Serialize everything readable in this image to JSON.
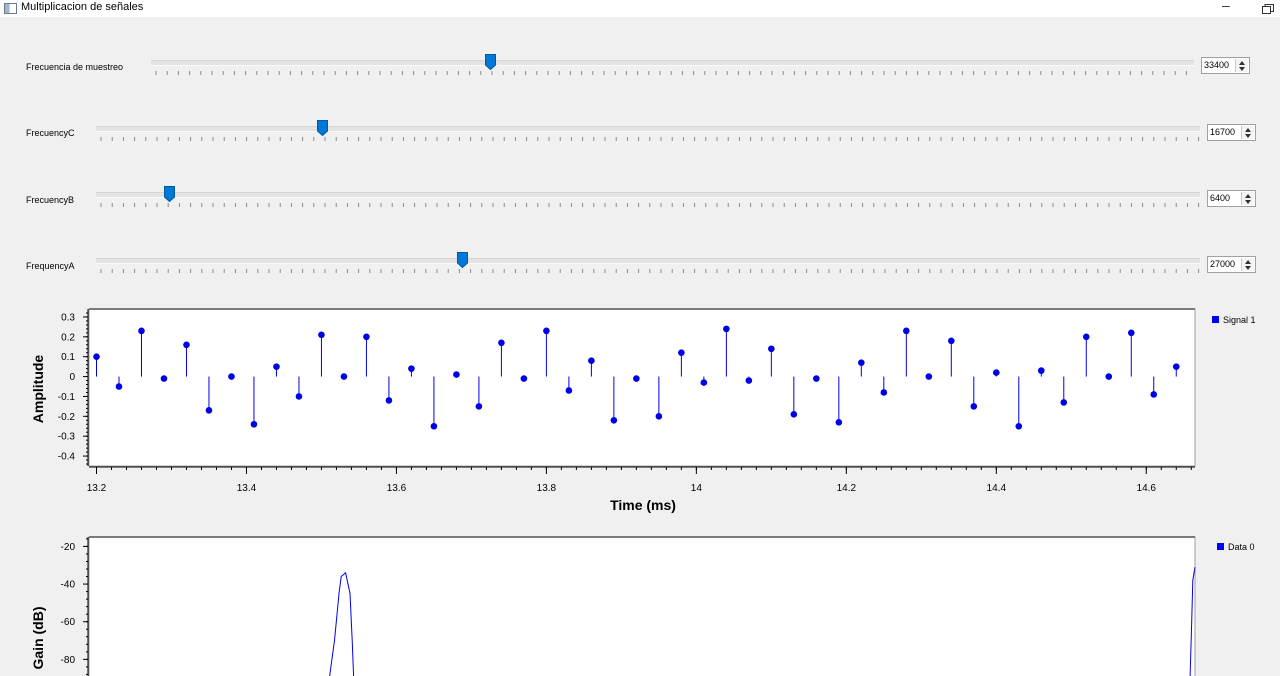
{
  "window": {
    "title": "Multiplicacion de señales",
    "minimize_glyph": "–",
    "icons": [
      "app-icon",
      "minimize-icon",
      "restore-icon"
    ]
  },
  "controls": [
    {
      "label": "Frecuencia de muestreo",
      "value": "33400",
      "slider_fraction": 0.3
    },
    {
      "label": "FrecuencyC",
      "value": "16700",
      "slider_fraction": 0.2
    },
    {
      "label": "FrecuencyB",
      "value": "6400",
      "slider_fraction": 0.07
    },
    {
      "label": "FrequencyA",
      "value": "27000",
      "slider_fraction": 0.33
    }
  ],
  "time_plot": {
    "legend": "Signal 1",
    "xlabel": "Time (ms)",
    "ylabel": "Amplitude",
    "x_ticks": [
      "13.2",
      "13.4",
      "13.6",
      "13.8",
      "14",
      "14.2",
      "14.4",
      "14.6"
    ],
    "y_ticks": [
      "0.3",
      "0.2",
      "0.1",
      "0",
      "-0.1",
      "-0.2",
      "-0.3",
      "-0.4"
    ]
  },
  "freq_plot": {
    "legend": "Data 0",
    "ylabel": "Gain (dB)",
    "y_ticks": [
      "-20",
      "-40",
      "-60",
      "-80"
    ]
  },
  "colors": {
    "accent": "#0078d7",
    "signal": "#0000e6",
    "frame": "#a0a0a0"
  },
  "chart_data": [
    {
      "type": "scatter",
      "style": "stem",
      "ylabel": "Amplitude",
      "xlabel": "Time (ms)",
      "xlim": [
        13.19,
        14.665
      ],
      "ylim": [
        -0.45,
        0.34
      ],
      "x_ticks": [
        13.2,
        13.4,
        13.6,
        13.8,
        14.0,
        14.2,
        14.4,
        14.6
      ],
      "y_ticks": [
        0.3,
        0.2,
        0.1,
        0,
        -0.1,
        -0.2,
        -0.3,
        -0.4
      ],
      "legend": "top-right",
      "series": [
        {
          "name": "Signal 1",
          "x": [
            13.2,
            13.23,
            13.26,
            13.29,
            13.32,
            13.35,
            13.38,
            13.41,
            13.44,
            13.47,
            13.5,
            13.53,
            13.56,
            13.59,
            13.62,
            13.65,
            13.68,
            13.71,
            13.74,
            13.77,
            13.8,
            13.83,
            13.86,
            13.89,
            13.92,
            13.95,
            13.98,
            14.01,
            14.04,
            14.07,
            14.1,
            14.13,
            14.16,
            14.19,
            14.22,
            14.25,
            14.28,
            14.31,
            14.34,
            14.37,
            14.4,
            14.43,
            14.46,
            14.49,
            14.52,
            14.55,
            14.58,
            14.61,
            14.64
          ],
          "values": [
            0.1,
            -0.05,
            0.23,
            -0.01,
            0.16,
            -0.17,
            0.0,
            -0.24,
            0.05,
            -0.1,
            0.21,
            0.0,
            0.2,
            -0.12,
            0.04,
            -0.25,
            0.01,
            -0.15,
            0.17,
            -0.01,
            0.23,
            -0.07,
            0.08,
            -0.22,
            -0.01,
            -0.2,
            0.12,
            -0.03,
            0.24,
            -0.02,
            0.14,
            -0.19,
            -0.01,
            -0.23,
            0.07,
            -0.08,
            0.23,
            0.0,
            0.18,
            -0.15,
            0.02,
            -0.25,
            0.03,
            -0.13,
            0.2,
            0.0,
            0.22,
            -0.09,
            0.05
          ]
        }
      ]
    },
    {
      "type": "line",
      "ylabel": "Gain (dB)",
      "xlim": [
        0,
        1
      ],
      "ylim": [
        -100,
        -15
      ],
      "y_ticks": [
        -20,
        -40,
        -60,
        -80
      ],
      "legend": "top-right",
      "series": [
        {
          "name": "Data 0",
          "x": [
            0.215,
            0.222,
            0.226,
            0.228,
            0.232,
            0.236,
            0.238,
            0.24,
            0.244,
            0.995,
            0.997,
            0.998,
            1.0
          ],
          "values": [
            -100,
            -70,
            -45,
            -36,
            -34,
            -45,
            -70,
            -100,
            -100,
            -100,
            -60,
            -38,
            -31
          ]
        }
      ]
    }
  ]
}
